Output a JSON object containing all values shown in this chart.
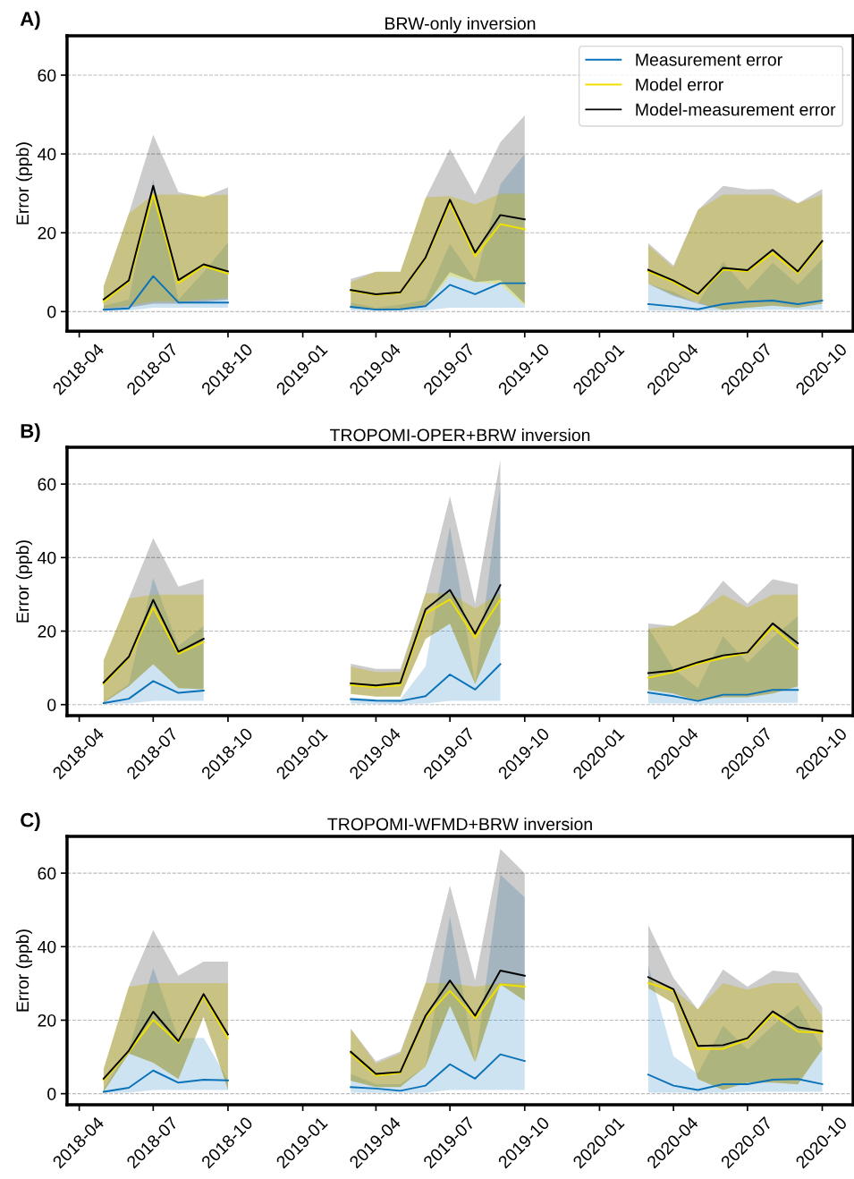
{
  "chart_data": [
    {
      "type": "line",
      "title": "BRW-only inversion",
      "ylabel": "Error (ppb)",
      "annotations": [
        "A)"
      ],
      "grid": "y",
      "legend": "top right",
      "xlim": [
        "2018-03-17",
        "2020-11-08"
      ],
      "ylim": [
        -5,
        70
      ],
      "yticks": [
        0,
        20,
        40,
        60
      ],
      "xticks": [
        "2018-04",
        "2018-07",
        "2018-10",
        "2019-01",
        "2019-04",
        "2019-07",
        "2019-10",
        "2020-01",
        "2020-04",
        "2020-07",
        "2020-10"
      ],
      "x": [
        "2018-05",
        "2018-06",
        "2018-07",
        "2018-08",
        "2018-09",
        "2018-10",
        "2018-11",
        "2019-03",
        "2019-04",
        "2019-05",
        "2019-06",
        "2019-07",
        "2019-08",
        "2019-09",
        "2019-10",
        "2019-11",
        "2020-03",
        "2020-04",
        "2020-05",
        "2020-06",
        "2020-07",
        "2020-08",
        "2020-09",
        "2020-10"
      ],
      "series": [
        {
          "name": "Measurement error",
          "color": "#0a72b8",
          "values": [
            0.5,
            0.8,
            9.0,
            2.3,
            2.3,
            2.3,
            null,
            1.2,
            0.5,
            0.6,
            1.4,
            6.8,
            4.4,
            7.2,
            7.2,
            null,
            1.9,
            1.3,
            0.6,
            1.9,
            2.5,
            2.8,
            1.9,
            2.8
          ],
          "lower": [
            0.2,
            0.3,
            1,
            1,
            1,
            1,
            null,
            0.3,
            0.2,
            0.2,
            0.3,
            1,
            1,
            1,
            1,
            null,
            0.3,
            0.3,
            0.2,
            0.3,
            0.5,
            0.5,
            0.5,
            0.5
          ],
          "upper": [
            1.5,
            3,
            33.5,
            3,
            10,
            17.5,
            null,
            2.3,
            1,
            1.7,
            3,
            17.2,
            7.9,
            32.3,
            40,
            null,
            7,
            5,
            2,
            12.6,
            5.5,
            12.4,
            6.8,
            13.3
          ]
        },
        {
          "name": "Model error",
          "color": "#f0e000",
          "values": [
            2.5,
            7.5,
            29.7,
            7.2,
            11.6,
            9.6,
            null,
            5.3,
            4.2,
            4.7,
            13.5,
            27.5,
            14.0,
            22.2,
            20.9,
            null,
            10.2,
            7.5,
            4.2,
            10.6,
            10.2,
            14.8,
            9.8,
            17.5
          ],
          "lower": [
            0.8,
            1.5,
            2.5,
            2.5,
            3,
            3.5,
            null,
            1,
            0.3,
            0.5,
            1.5,
            9,
            7.5,
            7,
            1.5,
            null,
            7.1,
            4.3,
            2.3,
            0.4,
            1,
            1.5,
            1,
            2
          ],
          "upper": [
            6.2,
            24.9,
            29.7,
            29.7,
            29.4,
            29.7,
            null,
            7.5,
            10.1,
            10.1,
            29,
            29.3,
            27.2,
            29.9,
            29.9,
            null,
            16.8,
            11.2,
            25.8,
            29.7,
            29.7,
            29.7,
            27.5,
            29.7
          ]
        },
        {
          "name": "Model-measurement error",
          "color": "#000000",
          "values": [
            3.1,
            7.9,
            31.9,
            8.0,
            12.0,
            10.2,
            null,
            5.5,
            4.4,
            4.9,
            13.7,
            28.4,
            15.0,
            24.5,
            23.4,
            null,
            10.6,
            7.9,
            4.5,
            11.1,
            10.5,
            15.7,
            10.2,
            17.9
          ],
          "lower": [
            0.5,
            1,
            2,
            2,
            2.5,
            3,
            null,
            1,
            0.5,
            0.5,
            1.5,
            10,
            7.5,
            8,
            2,
            null,
            7,
            4,
            2,
            0.5,
            1,
            1.5,
            1,
            2
          ],
          "upper": [
            6.5,
            24.9,
            44.9,
            30.3,
            29.0,
            31.5,
            null,
            8.3,
            10.1,
            10.1,
            28.8,
            41.3,
            29.7,
            43.0,
            49.8,
            null,
            17.4,
            11.7,
            25.8,
            31.9,
            31.0,
            31.1,
            27.5,
            31.1
          ]
        }
      ]
    },
    {
      "type": "line",
      "title": "TROPOMI-OPER+BRW inversion",
      "ylabel": "Error (ppb)",
      "annotations": [
        "B)"
      ],
      "grid": "y",
      "xlim": [
        "2018-03-17",
        "2020-11-08"
      ],
      "ylim": [
        -3,
        70
      ],
      "yticks": [
        0,
        20,
        40,
        60
      ],
      "xticks": [
        "2018-04",
        "2018-07",
        "2018-10",
        "2019-01",
        "2019-04",
        "2019-07",
        "2019-10",
        "2020-01",
        "2020-04",
        "2020-07",
        "2020-10"
      ],
      "x": [
        "2018-05",
        "2018-06",
        "2018-07",
        "2018-08",
        "2018-09",
        "2018-10",
        "2019-03",
        "2019-04",
        "2019-05",
        "2019-06",
        "2019-07",
        "2019-08",
        "2019-09",
        "2019-10",
        "2020-03",
        "2020-04",
        "2020-05",
        "2020-06",
        "2020-07",
        "2020-08",
        "2020-09"
      ],
      "series": [
        {
          "color": "#0a72b8",
          "values": [
            0.4,
            1.6,
            6.4,
            3.2,
            3.8,
            null,
            1.5,
            1.1,
            1.0,
            2.3,
            8.2,
            4.1,
            11.0,
            null,
            3.3,
            2.3,
            1.0,
            2.7,
            2.7,
            4.0,
            4.0
          ],
          "lower": [
            0.2,
            0.3,
            1,
            1,
            1,
            null,
            0.3,
            0.2,
            0.2,
            0.3,
            1,
            1,
            1,
            null,
            0.3,
            0.3,
            0.2,
            0.3,
            0.5,
            0.5,
            0.5
          ],
          "upper": [
            0.8,
            5.6,
            34.4,
            15.9,
            21.4,
            null,
            2,
            1.5,
            1.5,
            10.4,
            48.4,
            5.6,
            59.7,
            null,
            21,
            9.7,
            4.5,
            18.6,
            11.4,
            18.2,
            24.1
          ]
        },
        {
          "color": "#f0e000",
          "values": [
            5.6,
            12.7,
            26.4,
            13.8,
            17.0,
            null,
            5.3,
            4.7,
            5.3,
            24.8,
            28.6,
            18.2,
            28.6,
            null,
            7.3,
            8.8,
            11.1,
            12.7,
            14.1,
            21.1,
            15.2
          ],
          "lower": [
            0.5,
            5,
            11,
            4.5,
            4.2,
            null,
            2.9,
            2.2,
            2.2,
            17.9,
            22,
            5.6,
            22,
            null,
            4,
            3,
            1,
            2,
            2,
            3,
            5
          ],
          "upper": [
            12.1,
            28.9,
            29.9,
            29.9,
            29.9,
            null,
            10.3,
            8.9,
            8.9,
            30.3,
            30.3,
            26.2,
            30.3,
            null,
            20.7,
            21.4,
            25.1,
            29.9,
            26.4,
            29.9,
            29.9
          ]
        },
        {
          "color": "#000000",
          "values": [
            6.0,
            13.0,
            28.5,
            14.4,
            17.9,
            null,
            5.8,
            5.2,
            5.9,
            25.9,
            31.2,
            19.3,
            32.5,
            null,
            8.6,
            9.3,
            11.5,
            13.4,
            14.2,
            22.1,
            16.7
          ],
          "lower": [
            0.5,
            5,
            11,
            4.5,
            4.2,
            null,
            2.9,
            2.2,
            2.2,
            17.9,
            22,
            5.6,
            22,
            null,
            4,
            3,
            1,
            2,
            2,
            3,
            5
          ],
          "upper": [
            12.1,
            28.9,
            45.3,
            32.1,
            34.2,
            null,
            11.1,
            9.7,
            9.7,
            30.3,
            56.7,
            27.5,
            66.6,
            null,
            22.1,
            21.4,
            25.1,
            33.7,
            27.5,
            34.1,
            32.7
          ]
        }
      ]
    },
    {
      "type": "line",
      "title": "TROPOMI-WFMD+BRW inversion",
      "ylabel": "Error (ppb)",
      "annotations": [
        "C)"
      ],
      "grid": "y",
      "xlim": [
        "2018-03-17",
        "2020-11-08"
      ],
      "ylim": [
        -3,
        70
      ],
      "yticks": [
        0,
        20,
        40,
        60
      ],
      "xticks": [
        "2018-04",
        "2018-07",
        "2018-10",
        "2019-01",
        "2019-04",
        "2019-07",
        "2019-10",
        "2020-01",
        "2020-04",
        "2020-07",
        "2020-10"
      ],
      "x": [
        "2018-05",
        "2018-06",
        "2018-07",
        "2018-08",
        "2018-09",
        "2018-10",
        "2018-11",
        "2019-03",
        "2019-04",
        "2019-05",
        "2019-06",
        "2019-07",
        "2019-08",
        "2019-09",
        "2019-10",
        "2019-11",
        "2020-03",
        "2020-04",
        "2020-05",
        "2020-06",
        "2020-07",
        "2020-08",
        "2020-09",
        "2020-10"
      ],
      "series": [
        {
          "color": "#0a72b8",
          "values": [
            0.5,
            1.6,
            6.3,
            3.0,
            3.8,
            3.6,
            null,
            1.8,
            1.4,
            0.8,
            2.2,
            8.0,
            4.1,
            10.7,
            8.9,
            null,
            5.2,
            2.2,
            1.0,
            2.6,
            2.6,
            3.8,
            4.0,
            2.6
          ],
          "lower": [
            0.2,
            0.3,
            1,
            1,
            1,
            1,
            null,
            0.3,
            0.2,
            0.2,
            0.3,
            1,
            1,
            1,
            1,
            null,
            0.3,
            0.3,
            0.2,
            0.3,
            0.5,
            0.5,
            0.5,
            0.5
          ],
          "upper": [
            1.2,
            12.2,
            34.2,
            15,
            15.2,
            3.8,
            null,
            5.4,
            2.6,
            2.6,
            7.4,
            48.2,
            8.1,
            59.6,
            53.4,
            null,
            34.9,
            10.2,
            5.4,
            18.5,
            12,
            18.5,
            24,
            12.2
          ]
        },
        {
          "color": "#f0e000",
          "values": [
            3.7,
            11.4,
            20.1,
            13.9,
            26.5,
            15.0,
            null,
            10.9,
            4.9,
            5.6,
            20.7,
            28.0,
            20.5,
            29.7,
            29.1,
            null,
            30.1,
            28.0,
            12.2,
            12.2,
            14.7,
            21.6,
            16.9,
            16.6
          ],
          "lower": [
            0.5,
            10.9,
            8.4,
            4,
            20.9,
            1,
            null,
            3.5,
            1.8,
            1.8,
            7.4,
            23.9,
            8.5,
            29.7,
            25.3,
            null,
            28.7,
            24.6,
            4,
            1,
            3,
            3,
            2.5,
            12
          ],
          "upper": [
            6.7,
            29.1,
            30.1,
            30.1,
            30.1,
            30.1,
            null,
            17.7,
            8.1,
            10.9,
            30.1,
            30.1,
            29.1,
            30.1,
            30.1,
            null,
            31.5,
            28.4,
            22.9,
            30.1,
            28.3,
            30.1,
            30.1,
            21.2
          ]
        },
        {
          "color": "#000000",
          "values": [
            4.1,
            11.7,
            22.3,
            14.3,
            27.1,
            16.1,
            null,
            11.4,
            5.4,
            5.9,
            21.2,
            30.8,
            21.2,
            33.5,
            32.1,
            null,
            31.7,
            28.4,
            13.0,
            13.2,
            15.1,
            22.4,
            18.1,
            17.0
          ],
          "lower": [
            0.5,
            10.9,
            8.4,
            4,
            20.9,
            1,
            null,
            3.5,
            1.8,
            1.8,
            7.4,
            23.9,
            8.5,
            29.7,
            25.3,
            null,
            28.7,
            24.6,
            4,
            1,
            3,
            3,
            2.5,
            12
          ],
          "upper": [
            6.7,
            29.1,
            44.5,
            32.1,
            35.9,
            35.9,
            null,
            17.7,
            8.8,
            11.5,
            30.1,
            56.6,
            30.8,
            66.6,
            60.0,
            null,
            45.9,
            31.5,
            22.9,
            33.8,
            29.1,
            33.5,
            32.8,
            23.5
          ]
        }
      ]
    }
  ]
}
